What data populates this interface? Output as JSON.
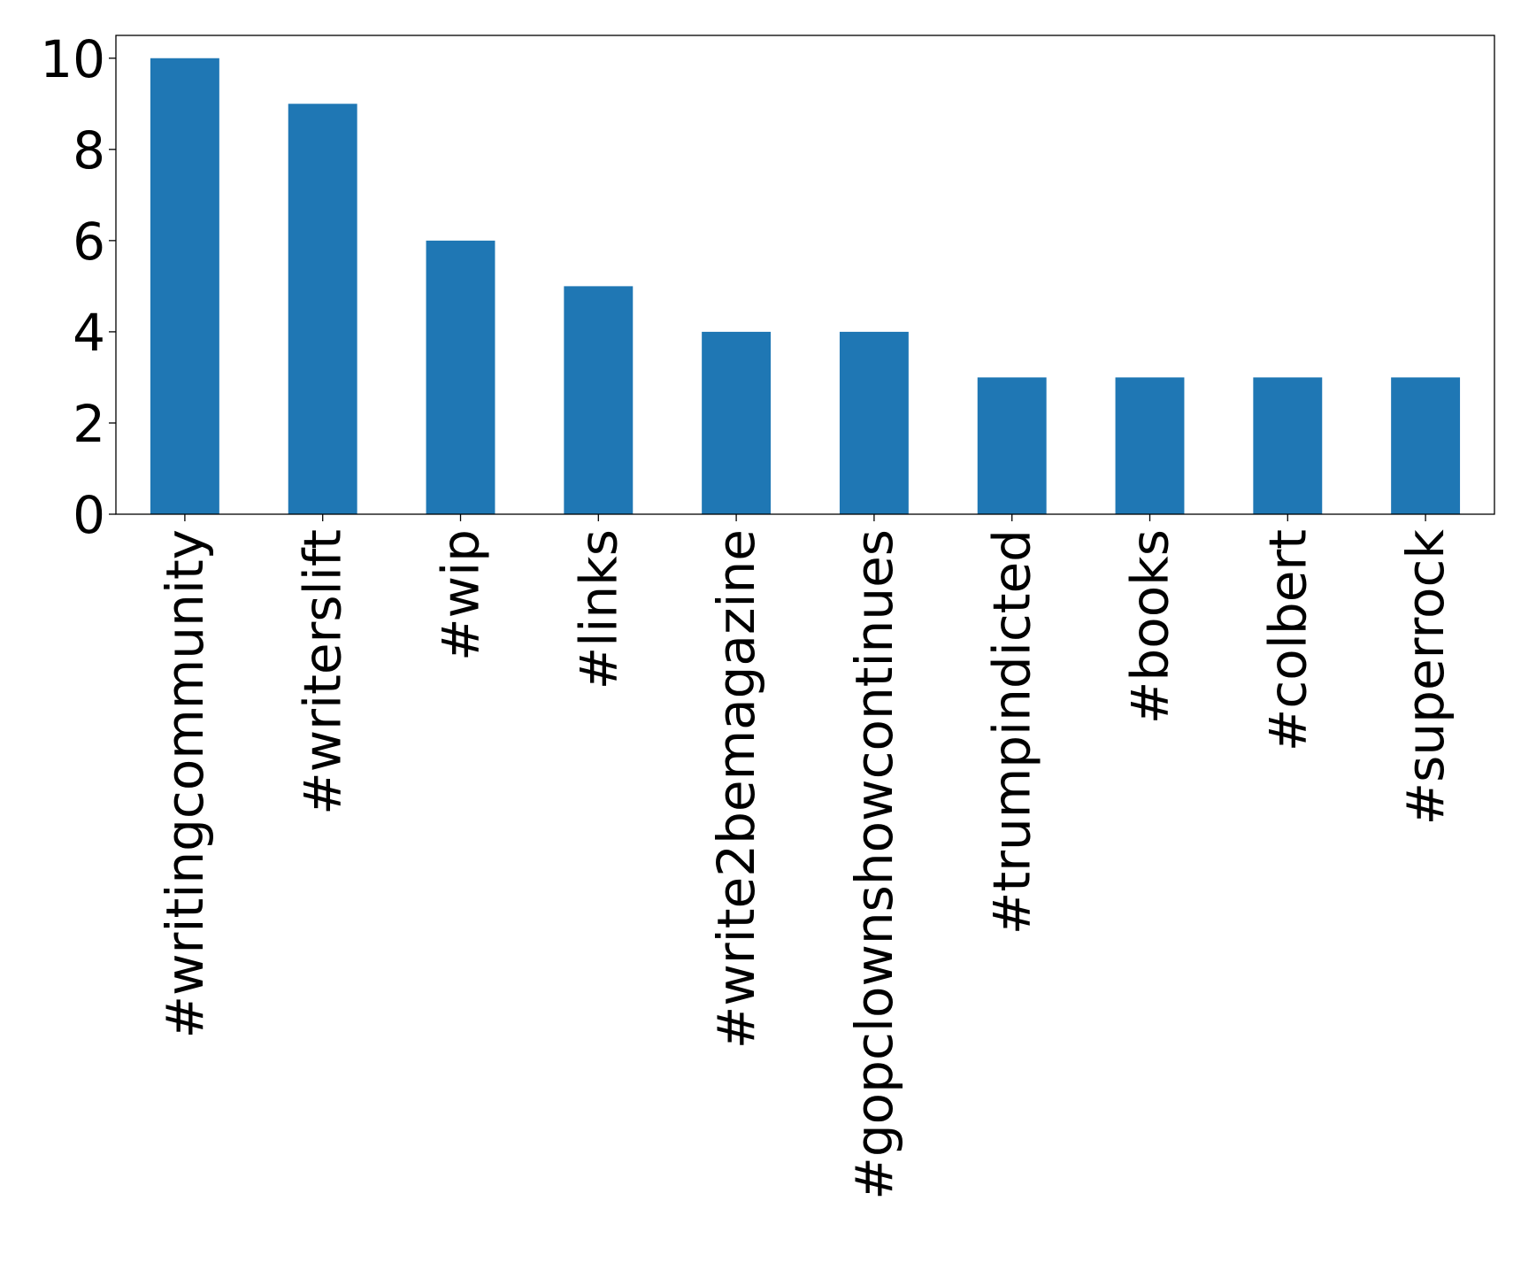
{
  "chart_data": {
    "type": "bar",
    "title": "",
    "xlabel": "",
    "ylabel": "",
    "categories": [
      "#writingcommunity",
      "#writerslift",
      "#wip",
      "#links",
      "#write2bemagazine",
      "#gopclownshowcontinues",
      "#trumpindicted",
      "#books",
      "#colbert",
      "#superrock"
    ],
    "values": [
      10,
      9,
      6,
      5,
      4,
      4,
      3,
      3,
      3,
      3
    ],
    "ylim": [
      0,
      10.5
    ],
    "yticks": [
      0,
      2,
      4,
      6,
      8,
      10
    ],
    "grid": false,
    "legend": "none",
    "bar_color": "#1f77b4"
  }
}
